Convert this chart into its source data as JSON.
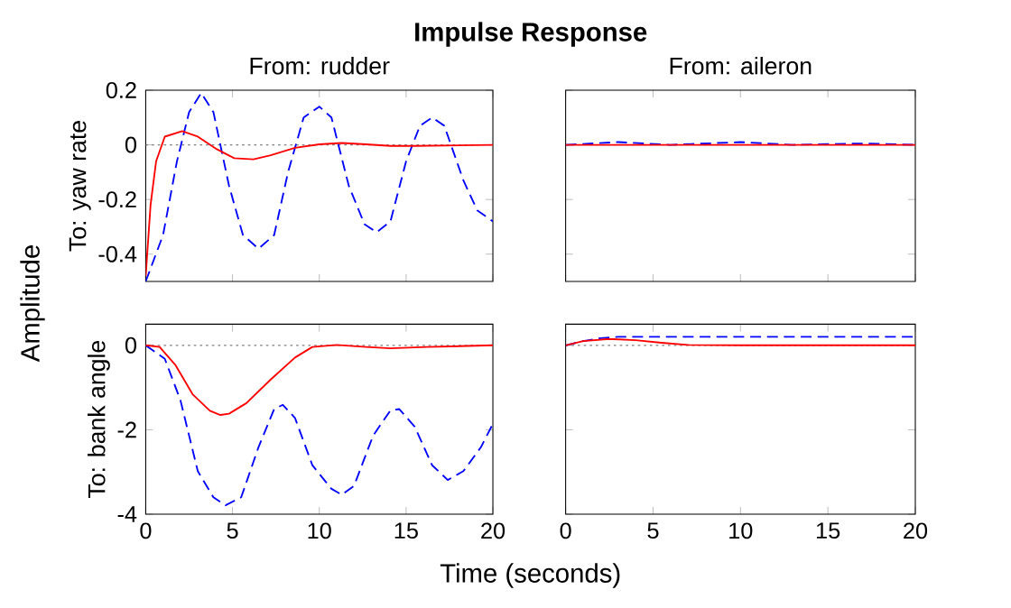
{
  "chart_data": [
    {
      "type": "other",
      "title": "Impulse Response",
      "xlabel": "Time (seconds)",
      "ylabel": "Amplitude"
    },
    {
      "type": "line",
      "title": "From: rudder",
      "ylabel": "To: yaw rate",
      "xlim": [
        0,
        20
      ],
      "xticks": [
        0,
        5,
        10,
        15,
        20
      ],
      "ylim": [
        -0.5,
        0.2
      ],
      "yticks": [
        -0.4,
        -0.2,
        0,
        0.2
      ],
      "tick_labels": "y",
      "grid": false,
      "marker": "none",
      "ref_lines": [
        {
          "axis": "y",
          "value": 0,
          "color": "#808080",
          "line_style": "dotted"
        }
      ],
      "series": [
        {
          "color": "#0000ff",
          "line_style": "dashed",
          "x": [
            0,
            1.0,
            1.8,
            2.5,
            3.2,
            3.9,
            4.8,
            5.6,
            6.5,
            7.4,
            8.2,
            9.1,
            10,
            10.7,
            11.7,
            12.6,
            13.3,
            14.1,
            15,
            15.8,
            16.5,
            17.2,
            18.3,
            19.1,
            20
          ],
          "values": [
            -0.5,
            -0.33,
            -0.06,
            0.12,
            0.19,
            0.12,
            -0.15,
            -0.33,
            -0.38,
            -0.33,
            -0.1,
            0.1,
            0.14,
            0.1,
            -0.15,
            -0.29,
            -0.32,
            -0.28,
            -0.06,
            0.07,
            0.1,
            0.07,
            -0.13,
            -0.24,
            -0.28
          ]
        },
        {
          "color": "#ff0000",
          "line_style": "solid",
          "x": [
            0,
            0.28,
            0.6,
            1.1,
            2.1,
            3.0,
            4.1,
            5.1,
            6.2,
            7.2,
            8.6,
            10,
            11.3,
            12.7,
            14.1,
            15.5,
            20
          ],
          "values": [
            -0.48,
            -0.22,
            -0.06,
            0.03,
            0.05,
            0.03,
            -0.016,
            -0.049,
            -0.053,
            -0.038,
            -0.011,
            0.002,
            0.007,
            0.002,
            -0.004,
            -0.004,
            0
          ]
        }
      ]
    },
    {
      "type": "line",
      "title": "From: aileron",
      "xlim": [
        0,
        20
      ],
      "xticks": [
        0,
        5,
        10,
        15,
        20
      ],
      "ylim": [
        -0.5,
        0.2
      ],
      "yticks": [
        -0.4,
        -0.2,
        0,
        0.2
      ],
      "tick_labels": false,
      "grid": false,
      "marker": "none",
      "ref_lines": [
        {
          "axis": "y",
          "value": 0,
          "color": "#808080",
          "line_style": "dotted"
        }
      ],
      "series": [
        {
          "color": "#0000ff",
          "line_style": "dashed",
          "x": [
            0,
            3,
            6,
            10,
            13,
            17,
            20
          ],
          "values": [
            0,
            0.01,
            0,
            0.01,
            0,
            0.005,
            0
          ]
        },
        {
          "color": "#ff0000",
          "line_style": "solid",
          "x": [
            0,
            20
          ],
          "values": [
            0,
            0
          ]
        }
      ]
    },
    {
      "type": "line",
      "ylabel": "To: bank angle",
      "xlim": [
        0,
        20
      ],
      "xticks": [
        0,
        5,
        10,
        15,
        20
      ],
      "ylim": [
        -4,
        0.5
      ],
      "yticks": [
        -4,
        -2,
        0
      ],
      "grid": false,
      "marker": "none",
      "ref_lines": [
        {
          "axis": "y",
          "value": 0,
          "color": "#808080",
          "line_style": "dotted"
        }
      ],
      "series": [
        {
          "color": "#0000ff",
          "line_style": "dashed",
          "x": [
            0,
            1.1,
            2.0,
            3.0,
            3.9,
            4.6,
            5.5,
            6.5,
            7.4,
            7.9,
            8.6,
            9.6,
            10.7,
            11.3,
            12.0,
            13.1,
            14.1,
            14.6,
            15.5,
            16.5,
            17.4,
            18.3,
            19.3,
            20
          ],
          "values": [
            0,
            -0.32,
            -1.3,
            -2.98,
            -3.6,
            -3.79,
            -3.6,
            -2.41,
            -1.51,
            -1.41,
            -1.72,
            -2.84,
            -3.4,
            -3.54,
            -3.33,
            -2.14,
            -1.54,
            -1.51,
            -1.93,
            -2.84,
            -3.19,
            -2.98,
            -2.42,
            -1.86
          ]
        },
        {
          "color": "#ff0000",
          "line_style": "solid",
          "x": [
            0,
            0.8,
            1.7,
            2.7,
            3.7,
            4.3,
            4.8,
            5.8,
            7.2,
            8.6,
            9.6,
            11,
            12.7,
            14.1,
            16.2,
            20
          ],
          "values": [
            0,
            -0.04,
            -0.46,
            -1.16,
            -1.55,
            -1.65,
            -1.62,
            -1.37,
            -0.81,
            -0.29,
            -0.04,
            0.01,
            -0.04,
            -0.07,
            -0.04,
            0
          ]
        }
      ]
    },
    {
      "type": "line",
      "xlim": [
        0,
        20
      ],
      "xticks": [
        0,
        5,
        10,
        15,
        20
      ],
      "ylim": [
        -4,
        0.5
      ],
      "yticks": [
        -4,
        -2,
        0
      ],
      "tick_labels": "x",
      "grid": false,
      "marker": "none",
      "ref_lines": [
        {
          "axis": "y",
          "value": 0,
          "color": "#808080",
          "line_style": "dotted"
        }
      ],
      "series": [
        {
          "color": "#0000ff",
          "line_style": "dashed",
          "x": [
            0,
            1,
            2,
            3,
            5,
            10,
            15,
            20
          ],
          "values": [
            0,
            0.1,
            0.17,
            0.2,
            0.2,
            0.2,
            0.2,
            0.2
          ]
        },
        {
          "color": "#ff0000",
          "line_style": "solid",
          "x": [
            0,
            1,
            2.5,
            4,
            5.5,
            7,
            10,
            20
          ],
          "values": [
            0,
            0.1,
            0.15,
            0.12,
            0.06,
            0.01,
            0,
            0
          ]
        }
      ]
    }
  ]
}
